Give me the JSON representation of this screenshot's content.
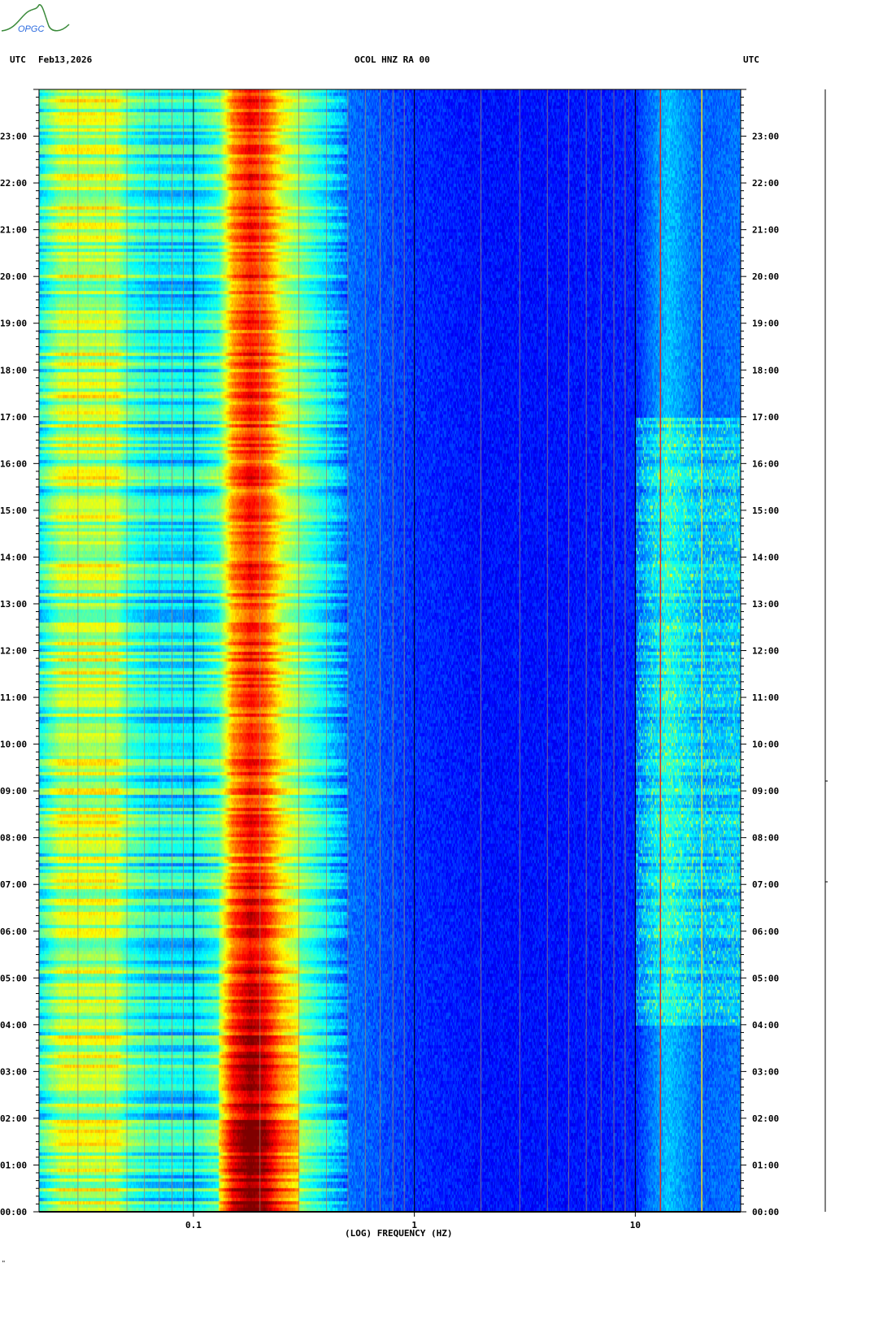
{
  "header": {
    "timezone_left": "UTC",
    "date": "Feb13,2026",
    "station": "OCOL HNZ RA 00",
    "timezone_right": "UTC"
  },
  "logo": {
    "text": "OPGC"
  },
  "footer": {
    "mark": "\""
  },
  "chart_data": {
    "type": "heatmap",
    "title": "OCOL HNZ RA 00",
    "xlabel": "(LOG) FREQUENCY (HZ)",
    "ylabel": "UTC",
    "x_scale": "log",
    "xlim": [
      0.02,
      30
    ],
    "ylim": [
      0,
      24
    ],
    "x_ticks": [
      {
        "value": 0.1,
        "label": "0.1"
      },
      {
        "value": 1,
        "label": "1"
      },
      {
        "value": 10,
        "label": "10"
      }
    ],
    "y_ticks": [
      {
        "value": 0,
        "label": "00:00"
      },
      {
        "value": 1,
        "label": "01:00"
      },
      {
        "value": 2,
        "label": "02:00"
      },
      {
        "value": 3,
        "label": "03:00"
      },
      {
        "value": 4,
        "label": "04:00"
      },
      {
        "value": 5,
        "label": "05:00"
      },
      {
        "value": 6,
        "label": "06:00"
      },
      {
        "value": 7,
        "label": "07:00"
      },
      {
        "value": 8,
        "label": "08:00"
      },
      {
        "value": 9,
        "label": "09:00"
      },
      {
        "value": 10,
        "label": "10:00"
      },
      {
        "value": 11,
        "label": "11:00"
      },
      {
        "value": 12,
        "label": "12:00"
      },
      {
        "value": 13,
        "label": "13:00"
      },
      {
        "value": 14,
        "label": "14:00"
      },
      {
        "value": 15,
        "label": "15:00"
      },
      {
        "value": 16,
        "label": "16:00"
      },
      {
        "value": 17,
        "label": "17:00"
      },
      {
        "value": 18,
        "label": "18:00"
      },
      {
        "value": 19,
        "label": "19:00"
      },
      {
        "value": 20,
        "label": "20:00"
      },
      {
        "value": 21,
        "label": "21:00"
      },
      {
        "value": 22,
        "label": "22:00"
      },
      {
        "value": 23,
        "label": "23:00"
      }
    ],
    "y_minor_tick_minutes": 10,
    "colormap": "jet",
    "mean_intensity_profile": {
      "freq_hz": [
        0.02,
        0.025,
        0.045,
        0.05,
        0.065,
        0.1,
        0.13,
        0.15,
        0.18,
        0.21,
        0.25,
        0.3,
        0.4,
        0.5,
        1,
        2,
        5,
        10,
        12,
        14,
        20,
        30
      ],
      "level": [
        0.38,
        0.55,
        0.55,
        0.45,
        0.38,
        0.36,
        0.45,
        0.72,
        0.85,
        0.78,
        0.6,
        0.5,
        0.36,
        0.24,
        0.17,
        0.14,
        0.14,
        0.16,
        0.25,
        0.32,
        0.22,
        0.24
      ]
    },
    "microseism_peak": {
      "freq_hz": 0.18,
      "strongest_hours": [
        0,
        7
      ]
    },
    "high_freq_activity": {
      "freq_hz": [
        10,
        30
      ],
      "active_hours": [
        4,
        17
      ]
    },
    "reference_lines_hz": {
      "black": [
        0.1,
        1,
        10
      ],
      "red": [
        13
      ],
      "yellow": [
        20
      ]
    }
  }
}
